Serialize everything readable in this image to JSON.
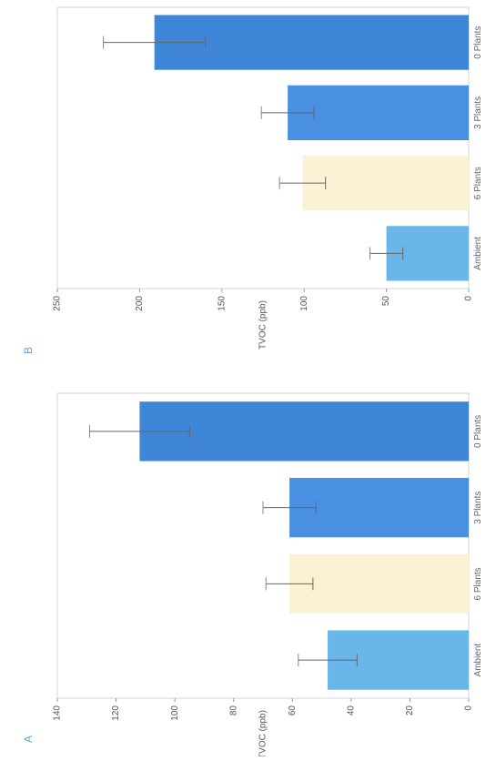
{
  "panels": [
    {
      "label": "A",
      "chart_data": {
        "type": "bar",
        "categories": [
          "0 Plants",
          "3 Plants",
          "6 Plants",
          "Ambient"
        ],
        "values": [
          112,
          61,
          61,
          48
        ],
        "error": [
          17,
          9,
          8,
          10
        ],
        "ylabel": "TVOC (ppb)",
        "ylim": [
          0,
          140
        ],
        "yticks": [
          0,
          20,
          40,
          60,
          80,
          100,
          120,
          140
        ],
        "orientation": "rotated-90",
        "grid": false,
        "colors": [
          "#3f86d6",
          "#4a90e2",
          "#fbf2d6",
          "#69b7ea"
        ]
      }
    },
    {
      "label": "B",
      "chart_data": {
        "type": "bar",
        "categories": [
          "0 Plants",
          "3 Plants",
          "6 Plants",
          "Ambient"
        ],
        "values": [
          191,
          110,
          101,
          50
        ],
        "error": [
          31,
          16,
          14,
          10
        ],
        "ylabel": "TVOC (ppb)",
        "ylim": [
          0,
          250
        ],
        "yticks": [
          0,
          50,
          100,
          150,
          200,
          250
        ],
        "orientation": "rotated-90",
        "grid": false,
        "colors": [
          "#3f86d6",
          "#4a90e2",
          "#fbf2d6",
          "#69b7ea"
        ]
      }
    }
  ]
}
